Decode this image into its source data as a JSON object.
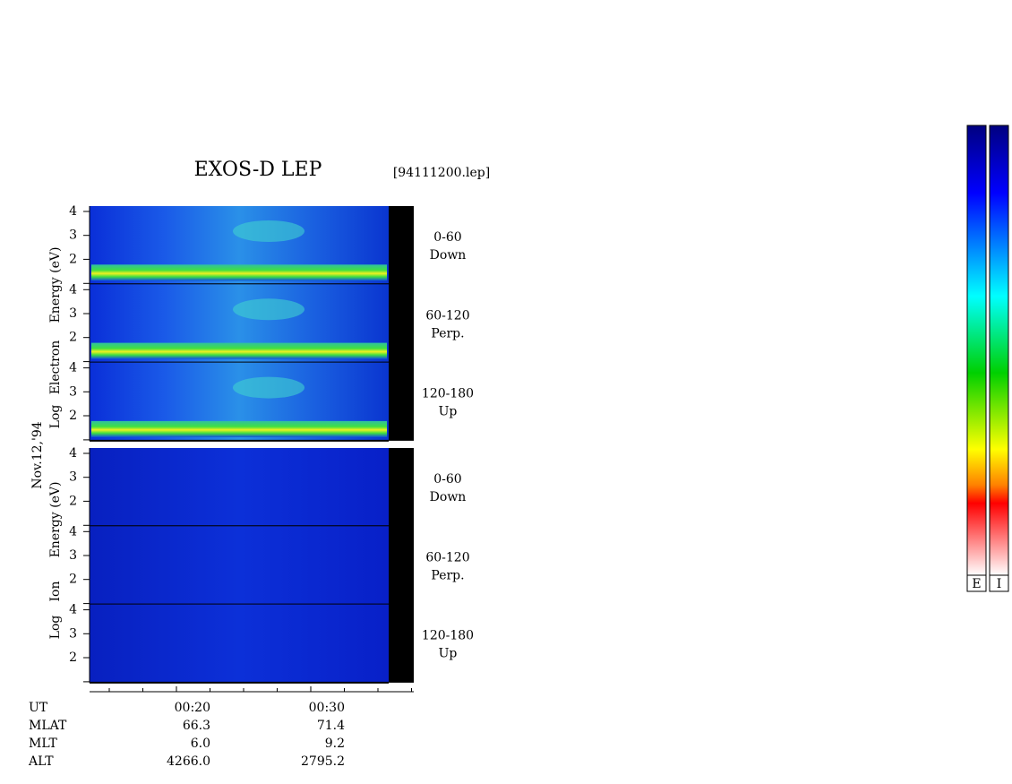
{
  "title": "EXOS-D LEP",
  "file": "[94111200.lep]",
  "date": "Nov.12,'94",
  "groups": [
    {
      "axis_label": [
        "Log",
        "Electron",
        "Energy (eV)"
      ],
      "panels": [
        {
          "angle": "0-60",
          "direction": "Down"
        },
        {
          "angle": "60-120",
          "direction": "Perp."
        },
        {
          "angle": "120-180",
          "direction": "Up"
        }
      ]
    },
    {
      "axis_label": [
        "Log",
        "Ion",
        "Energy (eV)"
      ],
      "panels": [
        {
          "angle": "0-60",
          "direction": "Down"
        },
        {
          "angle": "60-120",
          "direction": "Perp."
        },
        {
          "angle": "120-180",
          "direction": "Up"
        }
      ]
    }
  ],
  "energy_ticks": [
    "4",
    "3",
    "2"
  ],
  "ephemeris": {
    "rows": [
      {
        "label": "UT",
        "values": [
          "00:20",
          "00:30"
        ]
      },
      {
        "label": "MLAT",
        "values": [
          "66.3",
          "71.4"
        ]
      },
      {
        "label": "MLT",
        "values": [
          "6.0",
          "9.2"
        ]
      },
      {
        "label": "ALT",
        "values": [
          "4266.0",
          "2795.2"
        ]
      }
    ]
  },
  "colorbars": [
    "E",
    "I"
  ]
}
